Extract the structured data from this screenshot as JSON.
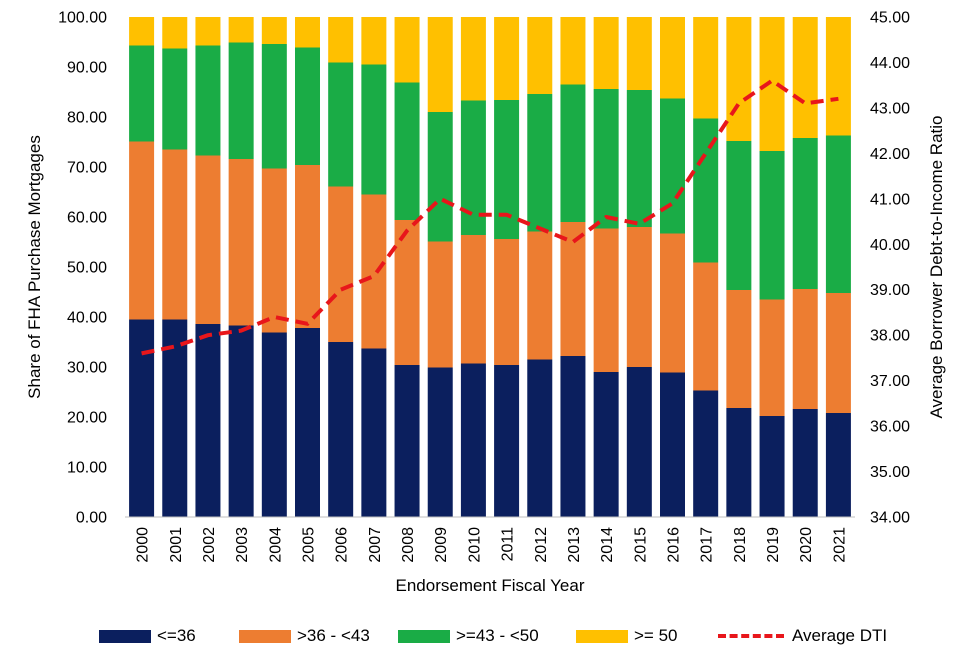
{
  "chart_data": {
    "type": "bar",
    "stacked": true,
    "categories": [
      "2000",
      "2001",
      "2002",
      "2003",
      "2004",
      "2005",
      "2006",
      "2007",
      "2008",
      "2009",
      "2010",
      "2011",
      "2012",
      "2013",
      "2014",
      "2015",
      "2016",
      "2017",
      "2018",
      "2019",
      "2020",
      "2021"
    ],
    "series": [
      {
        "name": "<=36",
        "color": "#0b1f5e",
        "values": [
          39.5,
          39.5,
          38.6,
          38.3,
          36.9,
          37.8,
          35.0,
          33.7,
          30.4,
          29.9,
          30.7,
          30.4,
          31.5,
          32.2,
          29.0,
          30.0,
          28.9,
          25.3,
          21.8,
          20.2,
          21.6,
          20.8
        ]
      },
      {
        "name": ">36 - <43",
        "color": "#ed7d31",
        "values": [
          35.6,
          34.0,
          33.7,
          33.3,
          32.8,
          32.6,
          31.1,
          30.8,
          29.0,
          25.2,
          25.7,
          25.2,
          25.6,
          26.8,
          28.7,
          28.0,
          27.8,
          25.6,
          23.6,
          23.3,
          24.0,
          24.0
        ]
      },
      {
        "name": ">=43 - <50",
        "color": "#1aac46",
        "values": [
          19.2,
          20.2,
          22.0,
          23.3,
          24.9,
          23.5,
          24.8,
          26.0,
          27.5,
          25.9,
          26.9,
          27.8,
          27.5,
          27.5,
          27.9,
          27.4,
          27.0,
          28.8,
          29.8,
          29.7,
          30.2,
          31.5
        ]
      },
      {
        "name": ">= 50",
        "color": "#ffc000",
        "values": [
          5.7,
          6.3,
          5.7,
          5.1,
          5.4,
          6.1,
          9.1,
          9.5,
          13.1,
          19.0,
          16.7,
          16.6,
          15.4,
          13.5,
          14.4,
          14.6,
          16.3,
          20.3,
          24.8,
          26.8,
          24.2,
          23.7
        ]
      }
    ],
    "line": {
      "name": "Average DTI",
      "color": "#e8161b",
      "axis": "right",
      "values": [
        37.6,
        37.75,
        38.0,
        38.1,
        38.4,
        38.25,
        39.0,
        39.3,
        40.3,
        41.0,
        40.65,
        40.65,
        40.35,
        40.05,
        40.6,
        40.45,
        40.9,
        42.0,
        43.1,
        43.6,
        43.1,
        43.2
      ]
    },
    "ylabel": "Share of FHA Purchase Mortgages",
    "y2label": "Average Borrower Debt-to-Income Ratio",
    "xlabel": "Endorsement Fiscal Year",
    "ylim": [
      0,
      100
    ],
    "y2lim": [
      34,
      45
    ],
    "yticks": [
      "0.00",
      "10.00",
      "20.00",
      "30.00",
      "40.00",
      "50.00",
      "60.00",
      "70.00",
      "80.00",
      "90.00",
      "100.00"
    ],
    "y2ticks": [
      "34.00",
      "35.00",
      "36.00",
      "37.00",
      "38.00",
      "39.00",
      "40.00",
      "41.00",
      "42.00",
      "43.00",
      "44.00",
      "45.00"
    ],
    "grid": false,
    "legend_position": "bottom"
  }
}
